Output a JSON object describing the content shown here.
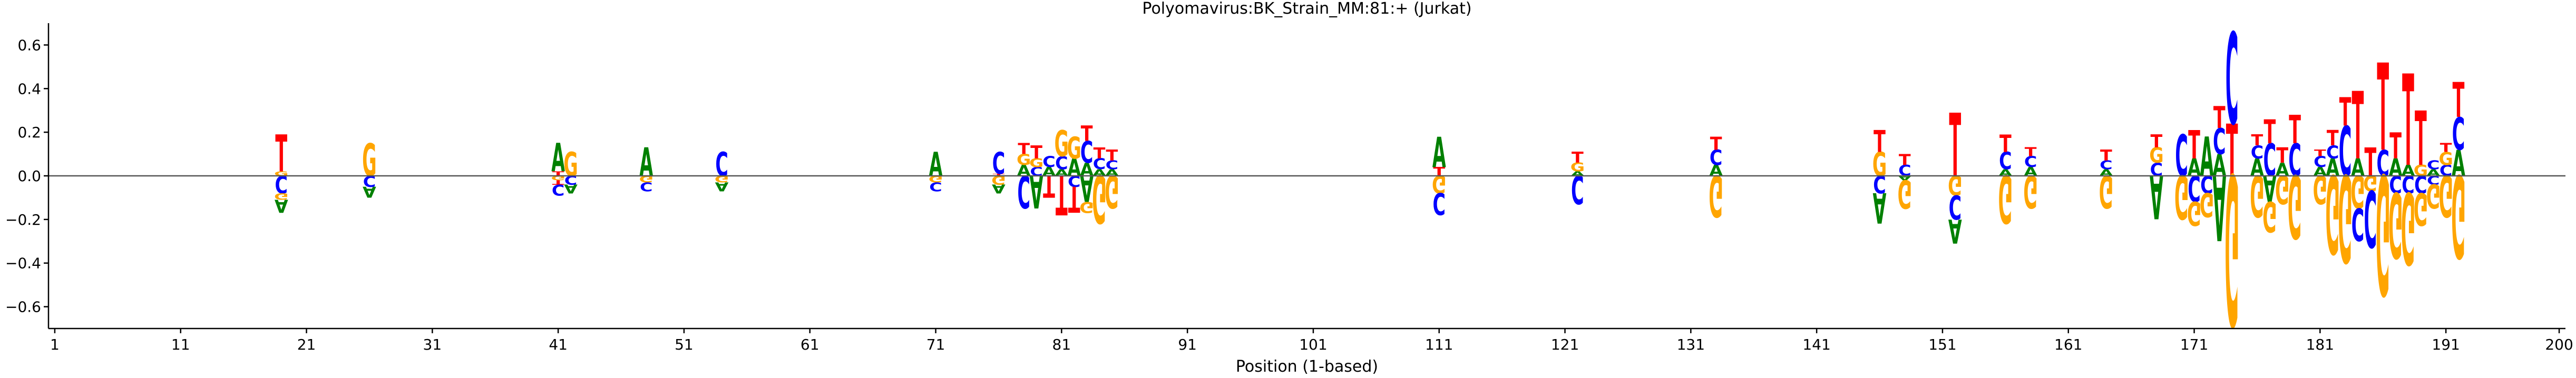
{
  "chart_data": {
    "type": "sequence-logo",
    "title": "Polyomavirus:BK_Strain_MM:81:+  (Jurkat)",
    "xlabel": "Position (1-based)",
    "ylabel": "",
    "xlim": [
      0.5,
      200.5
    ],
    "ylim": [
      -0.7,
      0.7
    ],
    "x_ticks": [
      1,
      11,
      21,
      31,
      41,
      51,
      61,
      71,
      81,
      91,
      101,
      111,
      121,
      131,
      141,
      151,
      161,
      171,
      181,
      191,
      200
    ],
    "y_ticks": [
      -0.6,
      -0.4,
      -0.2,
      0.0,
      0.2,
      0.4,
      0.6
    ],
    "y_tick_labels": [
      "−0.6",
      "−0.4",
      "−0.2",
      "0.0",
      "0.2",
      "0.4",
      "0.6"
    ],
    "zero_line": true,
    "colors": {
      "A": "#008000",
      "C": "#0000ff",
      "G": "#ffa500",
      "T": "#ff0000"
    },
    "positions": [
      {
        "pos": 19,
        "pos_stack": [
          [
            "G",
            0.02
          ],
          [
            "T",
            0.17
          ]
        ],
        "neg_stack": [
          [
            "C",
            0.08
          ],
          [
            "G",
            0.03
          ],
          [
            "A",
            0.06
          ]
        ]
      },
      {
        "pos": 26,
        "pos_stack": [
          [
            "G",
            0.15
          ]
        ],
        "neg_stack": [
          [
            "C",
            0.05
          ],
          [
            "A",
            0.05
          ]
        ]
      },
      {
        "pos": 41,
        "pos_stack": [
          [
            "T",
            0.02
          ],
          [
            "A",
            0.13
          ]
        ],
        "neg_stack": [
          [
            "G",
            0.02
          ],
          [
            "T",
            0.02
          ],
          [
            "C",
            0.05
          ]
        ]
      },
      {
        "pos": 42,
        "pos_stack": [
          [
            "G",
            0.11
          ]
        ],
        "neg_stack": [
          [
            "C",
            0.04
          ],
          [
            "A",
            0.04
          ]
        ]
      },
      {
        "pos": 48,
        "pos_stack": [
          [
            "A",
            0.13
          ]
        ],
        "neg_stack": [
          [
            "G",
            0.03
          ],
          [
            "C",
            0.04
          ]
        ]
      },
      {
        "pos": 54,
        "pos_stack": [
          [
            "C",
            0.11
          ]
        ],
        "neg_stack": [
          [
            "G",
            0.03
          ],
          [
            "A",
            0.04
          ]
        ]
      },
      {
        "pos": 71,
        "pos_stack": [
          [
            "A",
            0.11
          ]
        ],
        "neg_stack": [
          [
            "G",
            0.03
          ],
          [
            "C",
            0.04
          ]
        ]
      },
      {
        "pos": 76,
        "pos_stack": [
          [
            "T",
            0.01
          ],
          [
            "C",
            0.1
          ]
        ],
        "neg_stack": [
          [
            "G",
            0.04
          ],
          [
            "A",
            0.04
          ]
        ]
      },
      {
        "pos": 78,
        "pos_stack": [
          [
            "A",
            0.05
          ],
          [
            "G",
            0.05
          ],
          [
            "T",
            0.05
          ]
        ],
        "neg_stack": [
          [
            "C",
            0.15
          ]
        ]
      },
      {
        "pos": 79,
        "pos_stack": [
          [
            "C",
            0.04
          ],
          [
            "G",
            0.04
          ],
          [
            "T",
            0.06
          ]
        ],
        "neg_stack": [
          [
            "A",
            0.15
          ]
        ]
      },
      {
        "pos": 80,
        "pos_stack": [
          [
            "A",
            0.04
          ],
          [
            "C",
            0.05
          ]
        ],
        "neg_stack": [
          [
            "T",
            0.1
          ]
        ]
      },
      {
        "pos": 81,
        "pos_stack": [
          [
            "A",
            0.03
          ],
          [
            "C",
            0.06
          ],
          [
            "G",
            0.12
          ]
        ],
        "neg_stack": [
          [
            "T",
            0.18
          ]
        ]
      },
      {
        "pos": 82,
        "pos_stack": [
          [
            "A",
            0.08
          ],
          [
            "G",
            0.1
          ]
        ],
        "neg_stack": [
          [
            "C",
            0.05
          ],
          [
            "T",
            0.12
          ]
        ]
      },
      {
        "pos": 83,
        "pos_stack": [
          [
            "A",
            0.06
          ],
          [
            "C",
            0.1
          ],
          [
            "T",
            0.07
          ]
        ],
        "neg_stack": [
          [
            "A",
            0.12
          ],
          [
            "G",
            0.05
          ]
        ]
      },
      {
        "pos": 84,
        "pos_stack": [
          [
            "A",
            0.03
          ],
          [
            "C",
            0.05
          ],
          [
            "T",
            0.05
          ]
        ],
        "neg_stack": [
          [
            "G",
            0.22
          ]
        ]
      },
      {
        "pos": 85,
        "pos_stack": [
          [
            "A",
            0.03
          ],
          [
            "C",
            0.04
          ],
          [
            "T",
            0.05
          ]
        ],
        "neg_stack": [
          [
            "G",
            0.15
          ]
        ]
      },
      {
        "pos": 111,
        "pos_stack": [
          [
            "T",
            0.04
          ],
          [
            "A",
            0.14
          ]
        ],
        "neg_stack": [
          [
            "G",
            0.08
          ],
          [
            "C",
            0.1
          ]
        ]
      },
      {
        "pos": 122,
        "pos_stack": [
          [
            "A",
            0.02
          ],
          [
            "G",
            0.04
          ],
          [
            "T",
            0.05
          ]
        ],
        "neg_stack": [
          [
            "C",
            0.13
          ]
        ]
      },
      {
        "pos": 133,
        "pos_stack": [
          [
            "A",
            0.05
          ],
          [
            "C",
            0.07
          ],
          [
            "T",
            0.06
          ]
        ],
        "neg_stack": [
          [
            "G",
            0.19
          ]
        ]
      },
      {
        "pos": 146,
        "pos_stack": [
          [
            "G",
            0.11
          ],
          [
            "T",
            0.1
          ]
        ],
        "neg_stack": [
          [
            "C",
            0.08
          ],
          [
            "A",
            0.14
          ]
        ]
      },
      {
        "pos": 148,
        "pos_stack": [
          [
            "C",
            0.05
          ],
          [
            "T",
            0.05
          ]
        ],
        "neg_stack": [
          [
            "A",
            0.02
          ],
          [
            "G",
            0.13
          ]
        ]
      },
      {
        "pos": 152,
        "pos_stack": [
          [
            "T",
            0.29
          ]
        ],
        "neg_stack": [
          [
            "G",
            0.09
          ],
          [
            "C",
            0.11
          ],
          [
            "A",
            0.11
          ]
        ]
      },
      {
        "pos": 156,
        "pos_stack": [
          [
            "A",
            0.03
          ],
          [
            "C",
            0.08
          ],
          [
            "T",
            0.08
          ]
        ],
        "neg_stack": [
          [
            "G",
            0.22
          ]
        ]
      },
      {
        "pos": 158,
        "pos_stack": [
          [
            "A",
            0.04
          ],
          [
            "C",
            0.05
          ],
          [
            "T",
            0.04
          ]
        ],
        "neg_stack": [
          [
            "G",
            0.15
          ]
        ]
      },
      {
        "pos": 164,
        "pos_stack": [
          [
            "A",
            0.03
          ],
          [
            "C",
            0.04
          ],
          [
            "T",
            0.05
          ]
        ],
        "neg_stack": [
          [
            "G",
            0.15
          ]
        ]
      },
      {
        "pos": 168,
        "pos_stack": [
          [
            "C",
            0.06
          ],
          [
            "G",
            0.07
          ],
          [
            "T",
            0.06
          ]
        ],
        "neg_stack": [
          [
            "A",
            0.2
          ]
        ]
      },
      {
        "pos": 170,
        "pos_stack": [
          [
            "C",
            0.19
          ]
        ],
        "neg_stack": [
          [
            "G",
            0.2
          ]
        ]
      },
      {
        "pos": 171,
        "pos_stack": [
          [
            "A",
            0.08
          ],
          [
            "T",
            0.13
          ]
        ],
        "neg_stack": [
          [
            "C",
            0.12
          ],
          [
            "G",
            0.11
          ]
        ]
      },
      {
        "pos": 172,
        "pos_stack": [
          [
            "A",
            0.18
          ]
        ],
        "neg_stack": [
          [
            "C",
            0.08
          ],
          [
            "G",
            0.11
          ]
        ]
      },
      {
        "pos": 173,
        "pos_stack": [
          [
            "A",
            0.1
          ],
          [
            "C",
            0.12
          ],
          [
            "T",
            0.1
          ]
        ],
        "neg_stack": [
          [
            "A",
            0.3
          ]
        ]
      },
      {
        "pos": 174,
        "pos_stack": [
          [
            "T",
            0.24
          ],
          [
            "C",
            0.42
          ]
        ],
        "neg_stack": [
          [
            "G",
            0.69
          ]
        ]
      },
      {
        "pos": 176,
        "pos_stack": [
          [
            "A",
            0.08
          ],
          [
            "C",
            0.06
          ],
          [
            "T",
            0.05
          ]
        ],
        "neg_stack": [
          [
            "G",
            0.19
          ]
        ]
      },
      {
        "pos": 177,
        "pos_stack": [
          [
            "C",
            0.15
          ],
          [
            "T",
            0.11
          ]
        ],
        "neg_stack": [
          [
            "A",
            0.12
          ],
          [
            "G",
            0.14
          ]
        ]
      },
      {
        "pos": 178,
        "pos_stack": [
          [
            "A",
            0.06
          ],
          [
            "T",
            0.07
          ]
        ],
        "neg_stack": [
          [
            "G",
            0.13
          ]
        ]
      },
      {
        "pos": 179,
        "pos_stack": [
          [
            "C",
            0.15
          ],
          [
            "T",
            0.13
          ]
        ],
        "neg_stack": [
          [
            "G",
            0.29
          ]
        ]
      },
      {
        "pos": 181,
        "pos_stack": [
          [
            "A",
            0.04
          ],
          [
            "C",
            0.05
          ],
          [
            "T",
            0.03
          ]
        ],
        "neg_stack": [
          [
            "G",
            0.13
          ]
        ]
      },
      {
        "pos": 182,
        "pos_stack": [
          [
            "A",
            0.08
          ],
          [
            "C",
            0.06
          ],
          [
            "T",
            0.07
          ]
        ],
        "neg_stack": [
          [
            "G",
            0.36
          ]
        ]
      },
      {
        "pos": 183,
        "pos_stack": [
          [
            "C",
            0.23
          ],
          [
            "T",
            0.13
          ]
        ],
        "neg_stack": [
          [
            "G",
            0.4
          ]
        ]
      },
      {
        "pos": 184,
        "pos_stack": [
          [
            "A",
            0.08
          ],
          [
            "T",
            0.31
          ]
        ],
        "neg_stack": [
          [
            "G",
            0.15
          ],
          [
            "C",
            0.15
          ]
        ]
      },
      {
        "pos": 185,
        "pos_stack": [
          [
            "T",
            0.13
          ]
        ],
        "neg_stack": [
          [
            "G",
            0.07
          ],
          [
            "C",
            0.26
          ]
        ]
      },
      {
        "pos": 186,
        "pos_stack": [
          [
            "C",
            0.12
          ],
          [
            "T",
            0.4
          ]
        ],
        "neg_stack": [
          [
            "G",
            0.55
          ]
        ]
      },
      {
        "pos": 187,
        "pos_stack": [
          [
            "A",
            0.08
          ],
          [
            "T",
            0.12
          ]
        ],
        "neg_stack": [
          [
            "C",
            0.08
          ],
          [
            "G",
            0.3
          ]
        ]
      },
      {
        "pos": 188,
        "pos_stack": [
          [
            "A",
            0.05
          ],
          [
            "T",
            0.42
          ]
        ],
        "neg_stack": [
          [
            "C",
            0.08
          ],
          [
            "G",
            0.33
          ]
        ]
      },
      {
        "pos": 189,
        "pos_stack": [
          [
            "G",
            0.05
          ],
          [
            "T",
            0.25
          ]
        ],
        "neg_stack": [
          [
            "C",
            0.08
          ],
          [
            "G",
            0.15
          ]
        ]
      },
      {
        "pos": 190,
        "pos_stack": [
          [
            "A",
            0.03
          ],
          [
            "C",
            0.04
          ]
        ],
        "neg_stack": [
          [
            "C",
            0.04
          ],
          [
            "G",
            0.11
          ]
        ]
      },
      {
        "pos": 191,
        "pos_stack": [
          [
            "C",
            0.05
          ],
          [
            "G",
            0.06
          ],
          [
            "T",
            0.04
          ]
        ],
        "neg_stack": [
          [
            "G",
            0.19
          ]
        ]
      },
      {
        "pos": 192,
        "pos_stack": [
          [
            "A",
            0.12
          ],
          [
            "C",
            0.15
          ],
          [
            "T",
            0.16
          ]
        ],
        "neg_stack": [
          [
            "G",
            0.38
          ]
        ]
      }
    ]
  }
}
